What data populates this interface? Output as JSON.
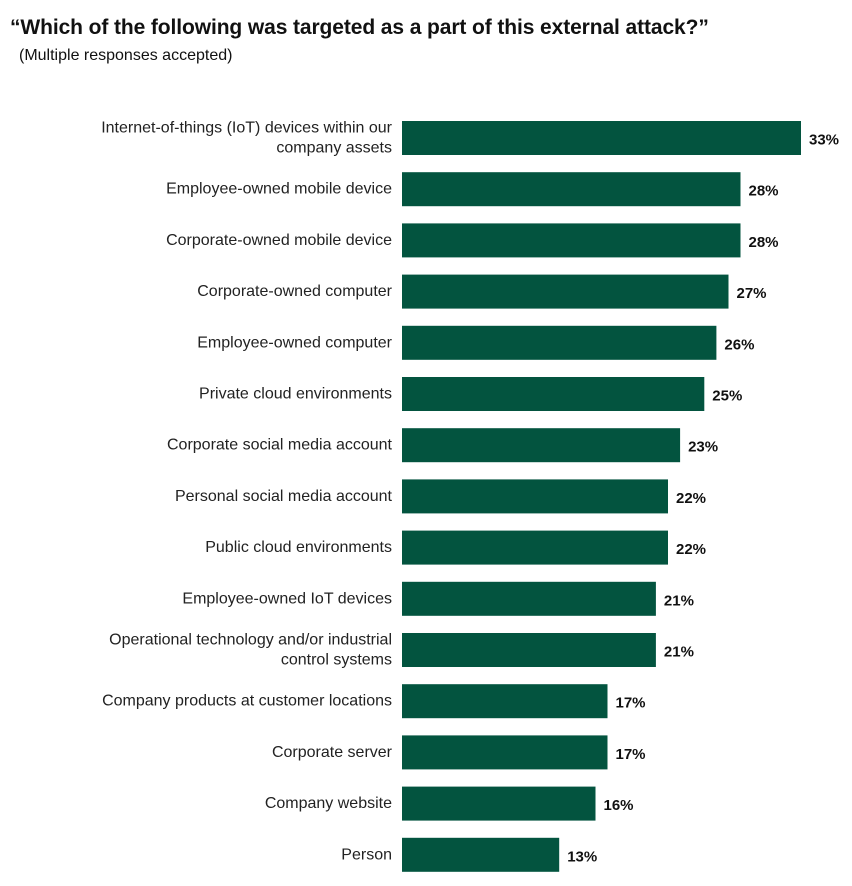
{
  "chart_data": {
    "type": "bar",
    "orientation": "horizontal",
    "title": "“Which of the following was targeted as a part of this external attack?”",
    "subtitle": "(Multiple responses accepted)",
    "categories": [
      [
        "Internet-of-things (IoT) devices within our",
        "company assets"
      ],
      [
        "Employee-owned mobile device"
      ],
      [
        "Corporate-owned mobile device"
      ],
      [
        "Corporate-owned computer"
      ],
      [
        "Employee-owned computer"
      ],
      [
        "Private cloud environments"
      ],
      [
        "Corporate social media account"
      ],
      [
        "Personal social media account"
      ],
      [
        "Public cloud environments"
      ],
      [
        "Employee-owned IoT devices"
      ],
      [
        "Operational technology and/or industrial",
        "control systems"
      ],
      [
        "Company products at customer locations"
      ],
      [
        "Corporate server"
      ],
      [
        "Company website"
      ],
      [
        "Person"
      ]
    ],
    "values": [
      33,
      28,
      28,
      27,
      26,
      25,
      23,
      22,
      22,
      21,
      21,
      17,
      17,
      16,
      13
    ],
    "value_labels": [
      "33%",
      "28%",
      "28%",
      "27%",
      "26%",
      "25%",
      "23%",
      "22%",
      "22%",
      "21%",
      "21%",
      "17%",
      "17%",
      "16%",
      "13%"
    ],
    "unit": "%",
    "xlim": [
      0,
      33
    ],
    "grid": false,
    "legend": "none",
    "bar_color": "#03543f"
  }
}
